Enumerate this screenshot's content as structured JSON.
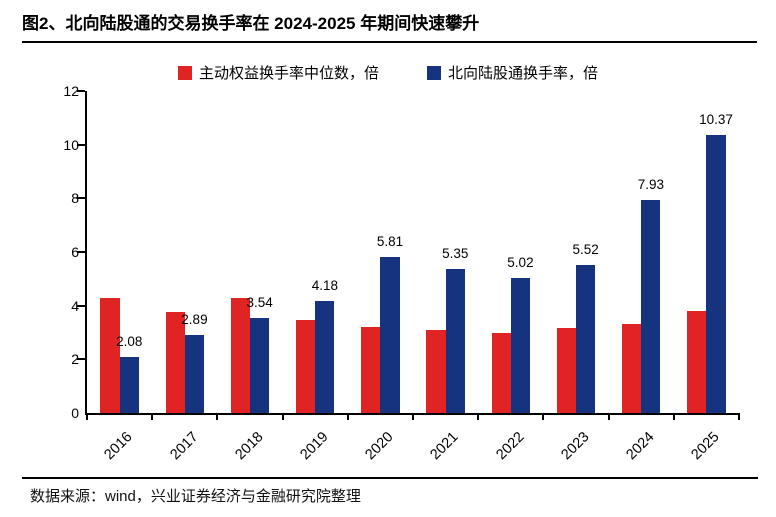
{
  "title": "图2、北向陆股通的交易换手率在 2024-2025 年期间快速攀升",
  "footer": "数据来源：wind，兴业证券经济与金融研究院整理",
  "legend": [
    {
      "label": "主动权益换手率中位数，倍",
      "color": "#E02424"
    },
    {
      "label": "北向陆股通换手率，倍",
      "color": "#15337F"
    }
  ],
  "colors": {
    "red_series": "#E02424",
    "blue_series": "#15337F",
    "axis": "#000000",
    "background": "#FFFFFF"
  },
  "chart_data": {
    "type": "bar",
    "title": "图2、北向陆股通的交易换手率在 2024-2025 年期间快速攀升",
    "categories": [
      "2016",
      "2017",
      "2018",
      "2019",
      "2020",
      "2021",
      "2022",
      "2023",
      "2024",
      "2025"
    ],
    "series": [
      {
        "name": "主动权益换手率中位数，倍",
        "key": "active-equity-median-turnover",
        "color": "#E02424",
        "values": [
          4.3,
          3.75,
          4.27,
          3.45,
          3.22,
          3.08,
          3.0,
          3.15,
          3.33,
          3.8
        ],
        "data_labels": null
      },
      {
        "name": "北向陆股通换手率，倍",
        "key": "northbound-turnover",
        "color": "#15337F",
        "values": [
          2.08,
          2.89,
          3.54,
          4.18,
          5.81,
          5.35,
          5.02,
          5.52,
          7.93,
          10.37
        ],
        "data_labels": [
          "2.08",
          "2.89",
          "3.54",
          "4.18",
          "5.81",
          "5.35",
          "5.02",
          "5.52",
          "7.93",
          "10.37"
        ]
      }
    ],
    "xlabel": "",
    "ylabel": "",
    "ylim": [
      0,
      12
    ],
    "yticks": [
      0,
      2,
      4,
      6,
      8,
      10,
      12
    ],
    "grid": false,
    "legend_position": "top",
    "xtick_rotation": 45
  }
}
